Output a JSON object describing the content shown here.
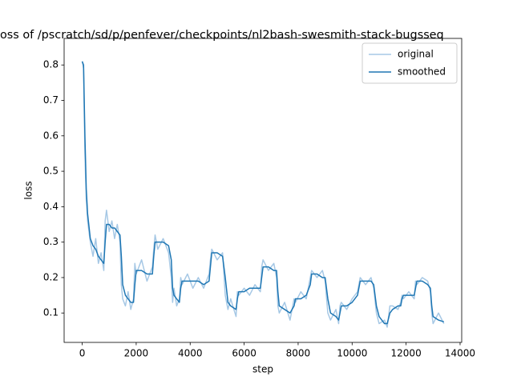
{
  "chart_data": {
    "type": "line",
    "title": "oss of /pscratch/sd/p/penfever/checkpoints/nl2bash-swesmith-stack-bugsseq",
    "xlabel": "step",
    "ylabel": "loss",
    "x": [
      0,
      50,
      100,
      150,
      200,
      300,
      400,
      500,
      600,
      700,
      800,
      850,
      900,
      1000,
      1100,
      1200,
      1300,
      1400,
      1450,
      1500,
      1600,
      1700,
      1800,
      1900,
      1950,
      2000,
      2200,
      2400,
      2600,
      2650,
      2700,
      2800,
      3000,
      3200,
      3300,
      3350,
      3400,
      3500,
      3600,
      3650,
      3700,
      3900,
      4100,
      4300,
      4500,
      4700,
      4750,
      4800,
      5000,
      5200,
      5300,
      5400,
      5500,
      5700,
      5750,
      5800,
      6000,
      6200,
      6400,
      6600,
      6650,
      6700,
      6900,
      7100,
      7200,
      7250,
      7300,
      7500,
      7700,
      7850,
      7900,
      8100,
      8300,
      8450,
      8500,
      8700,
      8900,
      9000,
      9100,
      9200,
      9400,
      9500,
      9550,
      9600,
      9800,
      10000,
      10200,
      10300,
      10500,
      10700,
      10800,
      10900,
      11000,
      11200,
      11300,
      11400,
      11500,
      11700,
      11800,
      11850,
      11900,
      12100,
      12300,
      12350,
      12400,
      12600,
      12800,
      12900,
      12950,
      13000,
      13200,
      13400
    ],
    "series": [
      {
        "name": "original",
        "color": "#a6c8e5",
        "values": [
          0.81,
          0.79,
          0.55,
          0.42,
          0.36,
          0.3,
          0.26,
          0.31,
          0.24,
          0.27,
          0.22,
          0.36,
          0.39,
          0.33,
          0.36,
          0.31,
          0.35,
          0.3,
          0.18,
          0.14,
          0.12,
          0.16,
          0.11,
          0.14,
          0.24,
          0.21,
          0.25,
          0.19,
          0.23,
          0.28,
          0.32,
          0.28,
          0.31,
          0.27,
          0.2,
          0.13,
          0.17,
          0.12,
          0.14,
          0.2,
          0.18,
          0.21,
          0.17,
          0.2,
          0.17,
          0.21,
          0.25,
          0.28,
          0.25,
          0.27,
          0.15,
          0.11,
          0.14,
          0.09,
          0.16,
          0.15,
          0.17,
          0.15,
          0.18,
          0.16,
          0.23,
          0.25,
          0.22,
          0.24,
          0.2,
          0.12,
          0.1,
          0.13,
          0.08,
          0.14,
          0.13,
          0.16,
          0.14,
          0.2,
          0.22,
          0.2,
          0.22,
          0.19,
          0.1,
          0.08,
          0.11,
          0.07,
          0.12,
          0.13,
          0.11,
          0.14,
          0.16,
          0.2,
          0.18,
          0.2,
          0.17,
          0.1,
          0.07,
          0.08,
          0.06,
          0.12,
          0.12,
          0.11,
          0.13,
          0.15,
          0.14,
          0.16,
          0.14,
          0.19,
          0.18,
          0.2,
          0.19,
          0.16,
          0.1,
          0.07,
          0.1,
          0.07
        ]
      },
      {
        "name": "smoothed",
        "color": "#1f77b4",
        "values": [
          0.81,
          0.8,
          0.6,
          0.45,
          0.38,
          0.31,
          0.29,
          0.28,
          0.26,
          0.25,
          0.24,
          0.3,
          0.35,
          0.35,
          0.34,
          0.34,
          0.33,
          0.32,
          0.26,
          0.18,
          0.15,
          0.14,
          0.13,
          0.13,
          0.18,
          0.22,
          0.22,
          0.21,
          0.21,
          0.26,
          0.3,
          0.3,
          0.3,
          0.29,
          0.25,
          0.17,
          0.15,
          0.14,
          0.13,
          0.17,
          0.19,
          0.19,
          0.19,
          0.19,
          0.18,
          0.19,
          0.23,
          0.27,
          0.27,
          0.26,
          0.2,
          0.13,
          0.12,
          0.11,
          0.14,
          0.16,
          0.16,
          0.17,
          0.17,
          0.17,
          0.2,
          0.23,
          0.23,
          0.22,
          0.22,
          0.16,
          0.12,
          0.11,
          0.1,
          0.12,
          0.14,
          0.14,
          0.15,
          0.18,
          0.21,
          0.21,
          0.2,
          0.2,
          0.14,
          0.1,
          0.09,
          0.08,
          0.1,
          0.12,
          0.12,
          0.13,
          0.15,
          0.19,
          0.19,
          0.19,
          0.18,
          0.12,
          0.09,
          0.07,
          0.07,
          0.1,
          0.11,
          0.12,
          0.12,
          0.14,
          0.15,
          0.15,
          0.15,
          0.17,
          0.19,
          0.19,
          0.18,
          0.17,
          0.12,
          0.09,
          0.08,
          0.075
        ]
      }
    ],
    "xlim": [
      -670,
      14060
    ],
    "xticks": [
      0,
      2000,
      4000,
      6000,
      8000,
      10000,
      12000,
      14000
    ],
    "ylim": [
      0.017,
      0.875
    ],
    "yticks": [
      0.1,
      0.2,
      0.3,
      0.4,
      0.5,
      0.6,
      0.7,
      0.8
    ],
    "legend": "upper right"
  }
}
